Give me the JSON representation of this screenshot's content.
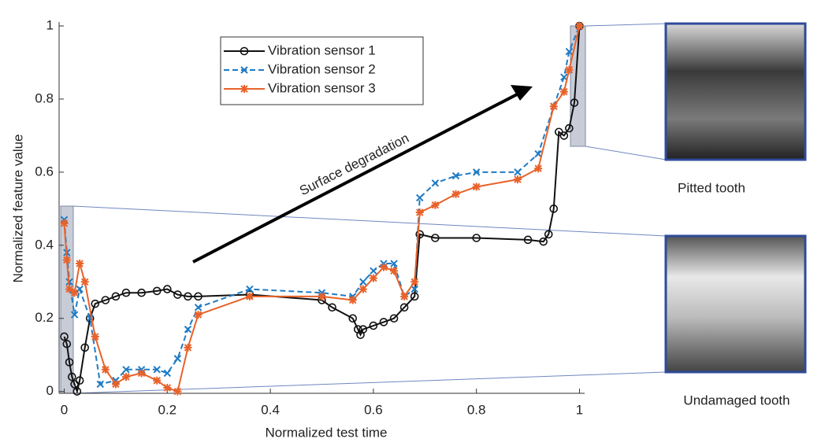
{
  "chart_data": {
    "type": "line",
    "xlabel": "Normalized test time",
    "ylabel": "Normalized feature value",
    "xlim": [
      -0.01,
      1.01
    ],
    "ylim": [
      -0.005,
      1.0
    ],
    "xticks": [
      0,
      0.2,
      0.4,
      0.6,
      0.8,
      1
    ],
    "yticks": [
      0,
      0.2,
      0.4,
      0.6,
      0.8,
      1
    ],
    "legend": "upper center",
    "annotations": [
      "Surface degradation",
      "Pitted tooth",
      "Undamaged tooth"
    ],
    "series": [
      {
        "name": "Vibration sensor 1",
        "color": "#111111",
        "marker": "o",
        "linestyle": "solid",
        "x": [
          0,
          0.005,
          0.01,
          0.015,
          0.02,
          0.025,
          0.03,
          0.04,
          0.05,
          0.06,
          0.08,
          0.1,
          0.12,
          0.15,
          0.18,
          0.2,
          0.22,
          0.24,
          0.26,
          0.36,
          0.5,
          0.52,
          0.56,
          0.57,
          0.575,
          0.58,
          0.6,
          0.62,
          0.64,
          0.66,
          0.68,
          0.69,
          0.72,
          0.8,
          0.9,
          0.93,
          0.94,
          0.95,
          0.96,
          0.97,
          0.98,
          0.99,
          1.0
        ],
        "values": [
          0.15,
          0.13,
          0.08,
          0.04,
          0.02,
          0.0,
          0.03,
          0.12,
          0.2,
          0.24,
          0.25,
          0.26,
          0.27,
          0.27,
          0.275,
          0.28,
          0.265,
          0.26,
          0.26,
          0.265,
          0.25,
          0.23,
          0.2,
          0.17,
          0.155,
          0.17,
          0.18,
          0.19,
          0.2,
          0.23,
          0.26,
          0.43,
          0.42,
          0.42,
          0.415,
          0.41,
          0.43,
          0.5,
          0.71,
          0.7,
          0.72,
          0.79,
          1.0
        ]
      },
      {
        "name": "Vibration sensor 2",
        "color": "#1f7bc4",
        "marker": "x",
        "linestyle": "dashed",
        "x": [
          0,
          0.005,
          0.01,
          0.02,
          0.03,
          0.05,
          0.07,
          0.1,
          0.12,
          0.15,
          0.18,
          0.2,
          0.22,
          0.24,
          0.26,
          0.36,
          0.5,
          0.56,
          0.58,
          0.6,
          0.62,
          0.64,
          0.66,
          0.68,
          0.69,
          0.72,
          0.76,
          0.8,
          0.88,
          0.92,
          0.95,
          0.97,
          0.98,
          1.0
        ],
        "values": [
          0.47,
          0.38,
          0.3,
          0.21,
          0.28,
          0.2,
          0.02,
          0.03,
          0.06,
          0.06,
          0.06,
          0.05,
          0.09,
          0.17,
          0.23,
          0.28,
          0.27,
          0.26,
          0.3,
          0.33,
          0.35,
          0.35,
          0.26,
          0.28,
          0.53,
          0.57,
          0.59,
          0.6,
          0.6,
          0.65,
          0.78,
          0.86,
          0.93,
          1.0
        ]
      },
      {
        "name": "Vibration sensor 3",
        "color": "#e8622a",
        "marker": "*",
        "linestyle": "solid",
        "x": [
          0,
          0.005,
          0.01,
          0.02,
          0.03,
          0.04,
          0.06,
          0.08,
          0.1,
          0.12,
          0.15,
          0.18,
          0.2,
          0.22,
          0.24,
          0.26,
          0.36,
          0.5,
          0.56,
          0.58,
          0.6,
          0.62,
          0.64,
          0.66,
          0.68,
          0.69,
          0.72,
          0.76,
          0.8,
          0.88,
          0.92,
          0.95,
          0.97,
          0.98,
          1.0
        ],
        "values": [
          0.46,
          0.36,
          0.28,
          0.27,
          0.35,
          0.3,
          0.15,
          0.06,
          0.02,
          0.04,
          0.05,
          0.03,
          0.01,
          0.0,
          0.12,
          0.21,
          0.26,
          0.26,
          0.25,
          0.28,
          0.31,
          0.34,
          0.33,
          0.26,
          0.3,
          0.49,
          0.51,
          0.54,
          0.56,
          0.58,
          0.61,
          0.78,
          0.82,
          0.88,
          1.0
        ]
      }
    ]
  }
}
